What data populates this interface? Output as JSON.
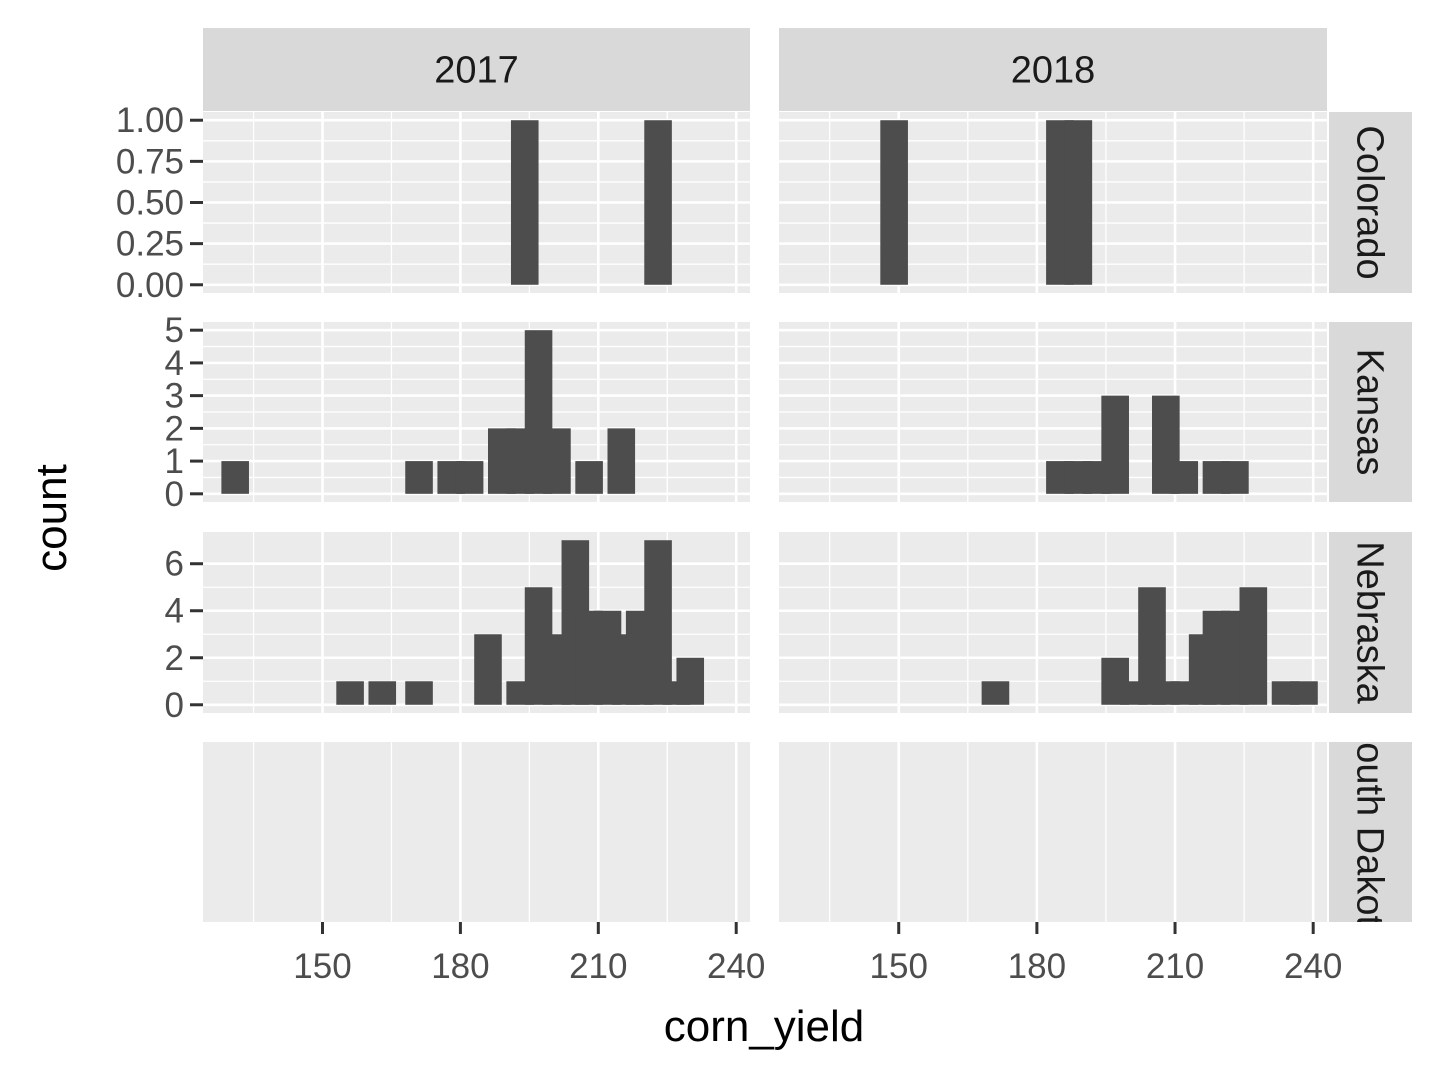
{
  "chart_data": {
    "type": "bar",
    "subtype": "faceted-histogram",
    "xlabel": "corn_yield",
    "ylabel": "count",
    "bin_width": 6,
    "xlim": [
      124,
      243
    ],
    "x_ticks": [
      150,
      180,
      210,
      240
    ],
    "col_facets": [
      "2017",
      "2018"
    ],
    "row_facets": [
      "Colorado",
      "Kansas",
      "Nebraska",
      "South Dakota"
    ],
    "row_y_axes": [
      {
        "ylim": [
          -0.05,
          1.05
        ],
        "ticks": [
          0,
          0.25,
          0.5,
          0.75,
          1
        ],
        "tick_labels": [
          "0.00",
          "0.25",
          "0.50",
          "0.75",
          "1.00"
        ]
      },
      {
        "ylim": [
          -0.25,
          5.25
        ],
        "ticks": [
          0,
          1,
          2,
          3,
          4,
          5
        ],
        "tick_labels": [
          "0",
          "1",
          "2",
          "3",
          "4",
          "5"
        ]
      },
      {
        "ylim": [
          -0.35,
          7.35
        ],
        "ticks": [
          0,
          2,
          4,
          6
        ],
        "tick_labels": [
          "0",
          "2",
          "4",
          "6"
        ]
      },
      {
        "ylim": [
          0,
          1
        ],
        "ticks": [],
        "tick_labels": []
      }
    ],
    "panels": [
      {
        "row": "Colorado",
        "col": "2017",
        "bins": [
          [
            194,
            1
          ],
          [
            223,
            1
          ]
        ]
      },
      {
        "row": "Colorado",
        "col": "2018",
        "bins": [
          [
            149,
            1
          ],
          [
            185,
            1
          ],
          [
            189,
            1
          ]
        ]
      },
      {
        "row": "Kansas",
        "col": "2017",
        "bins": [
          [
            131,
            1
          ],
          [
            171,
            1
          ],
          [
            178,
            1
          ],
          [
            182,
            1
          ],
          [
            189,
            2
          ],
          [
            193,
            2
          ],
          [
            197,
            5
          ],
          [
            201,
            2
          ],
          [
            205,
            0
          ],
          [
            208,
            1
          ],
          [
            215,
            2
          ]
        ]
      },
      {
        "row": "Kansas",
        "col": "2018",
        "bins": [
          [
            185,
            1
          ],
          [
            189,
            1
          ],
          [
            193,
            1
          ],
          [
            197,
            3
          ],
          [
            201,
            0
          ],
          [
            205,
            0
          ],
          [
            208,
            3
          ],
          [
            212,
            1
          ],
          [
            219,
            1
          ],
          [
            223,
            1
          ]
        ]
      },
      {
        "row": "Nebraska",
        "col": "2017",
        "bins": [
          [
            156,
            1
          ],
          [
            163,
            1
          ],
          [
            171,
            1
          ],
          [
            186,
            3
          ],
          [
            193,
            1
          ],
          [
            197,
            5
          ],
          [
            201,
            3
          ],
          [
            205,
            7
          ],
          [
            208,
            4
          ],
          [
            212,
            4
          ],
          [
            216,
            3
          ],
          [
            219,
            4
          ],
          [
            223,
            7
          ],
          [
            227,
            1
          ],
          [
            230,
            2
          ]
        ]
      },
      {
        "row": "Nebraska",
        "col": "2018",
        "bins": [
          [
            171,
            1
          ],
          [
            197,
            2
          ],
          [
            201,
            1
          ],
          [
            205,
            5
          ],
          [
            208,
            1
          ],
          [
            212,
            1
          ],
          [
            216,
            3
          ],
          [
            219,
            4
          ],
          [
            223,
            4
          ],
          [
            227,
            5
          ],
          [
            234,
            1
          ],
          [
            238,
            1
          ]
        ]
      },
      {
        "row": "South Dakota",
        "col": "2017",
        "bins": []
      },
      {
        "row": "South Dakota",
        "col": "2018",
        "bins": []
      }
    ]
  }
}
